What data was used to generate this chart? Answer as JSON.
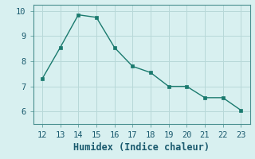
{
  "x": [
    12,
    13,
    14,
    15,
    16,
    17,
    18,
    19,
    20,
    21,
    22,
    23
  ],
  "y": [
    7.3,
    8.55,
    9.85,
    9.75,
    8.55,
    7.8,
    7.55,
    7.0,
    7.0,
    6.55,
    6.55,
    6.05
  ],
  "xlabel": "Humidex (Indice chaleur)",
  "xlim": [
    11.5,
    23.5
  ],
  "ylim": [
    5.5,
    10.25
  ],
  "xticks": [
    12,
    13,
    14,
    15,
    16,
    17,
    18,
    19,
    20,
    21,
    22,
    23
  ],
  "yticks": [
    6,
    7,
    8,
    9,
    10
  ],
  "line_color": "#1a7a6e",
  "marker_color": "#1a7a6e",
  "bg_color": "#d8f0f0",
  "grid_color": "#b8d8d8",
  "axes_color": "#4a9090",
  "font_color": "#1a5a6e",
  "tick_fontsize": 7.5,
  "xlabel_fontsize": 8.5
}
